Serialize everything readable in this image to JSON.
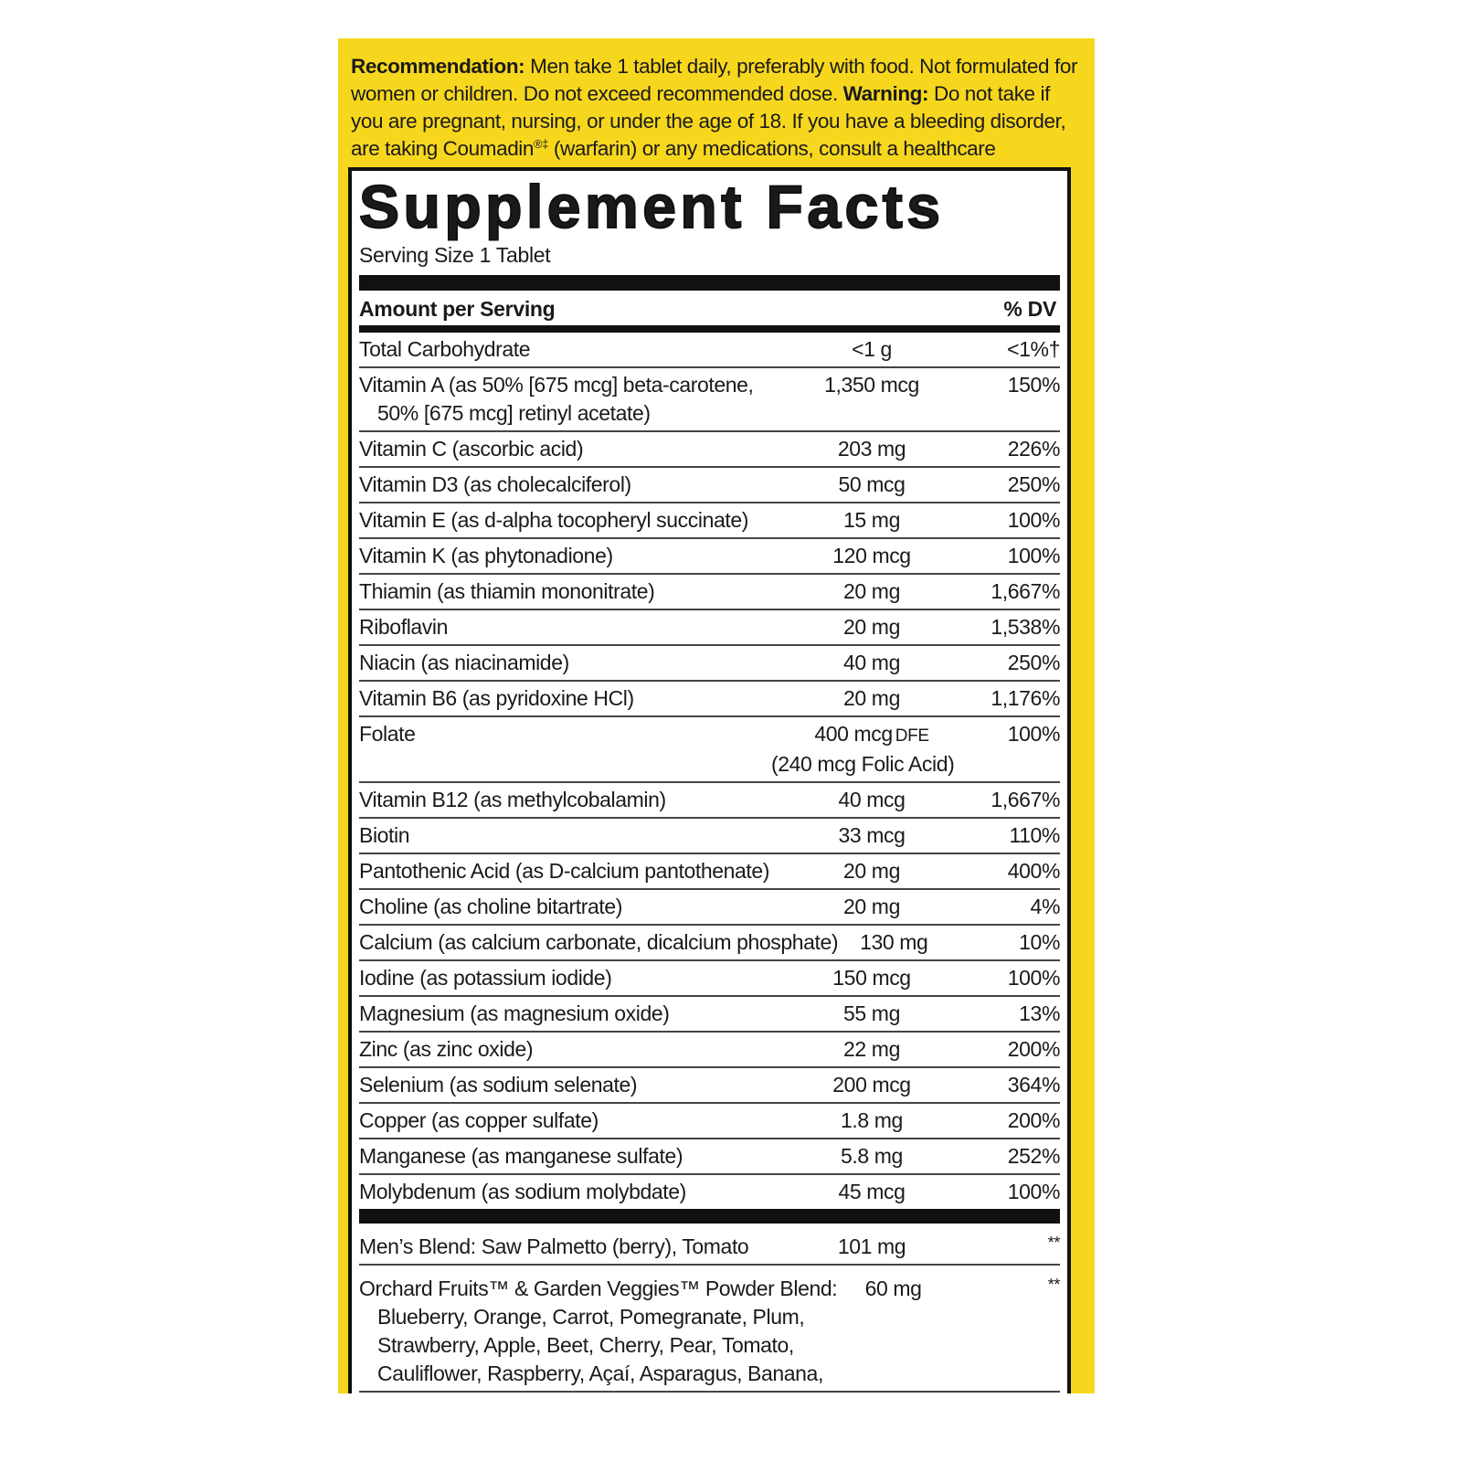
{
  "warning_box": {
    "recommendation_label": "Recommendation:",
    "recommendation_text": "Men take 1 tablet daily, preferably with food. Not formulated for women or children. Do not exceed recommended dose.",
    "warning_label": "Warning:",
    "warning_text_1": "Do not take if you are pregnant, nursing, or under the age of 18. If you have a bleeding disorder, are taking Coumadin",
    "warning_mark": "®‡",
    "warning_text_2": "(warfarin) or any medications, consult a healthcare professional before use."
  },
  "facts": {
    "title": "Supplement Facts",
    "serving_size": "Serving Size 1 Tablet",
    "header": {
      "amount": "Amount per Serving",
      "dv": "% DV"
    },
    "rows": [
      {
        "name": "Total Carbohydrate",
        "amount": "<1 g",
        "dv": "<1%†"
      },
      {
        "name": "Vitamin A (as 50% [675 mcg] beta-carotene,",
        "detail": "50% [675 mcg] retinyl acetate)",
        "amount": "1,350 mcg",
        "dv": "150%"
      },
      {
        "name": "Vitamin C (ascorbic acid)",
        "amount": "203 mg",
        "dv": "226%"
      },
      {
        "name": "Vitamin D3 (as cholecalciferol)",
        "amount": "50 mcg",
        "dv": "250%"
      },
      {
        "name": "Vitamin E (as d-alpha tocopheryl succinate)",
        "amount": "15 mg",
        "dv": "100%"
      },
      {
        "name": "Vitamin K (as phytonadione)",
        "amount": "120 mcg",
        "dv": "100%"
      },
      {
        "name": "Thiamin (as thiamin mononitrate)",
        "amount": "20 mg",
        "dv": "1,667%"
      },
      {
        "name": "Riboflavin",
        "amount": "20 mg",
        "dv": "1,538%"
      },
      {
        "name": "Niacin (as niacinamide)",
        "amount": "40 mg",
        "dv": "250%"
      },
      {
        "name": "Vitamin B6 (as pyridoxine HCl)",
        "amount": "20 mg",
        "dv": "1,176%"
      },
      {
        "name": "Folate",
        "amount": "400 mcg",
        "unit": "DFE",
        "amount_detail": "(240 mcg Folic Acid)",
        "dv": "100%"
      },
      {
        "name": "Vitamin B12 (as methylcobalamin)",
        "amount": "40 mcg",
        "dv": "1,667%"
      },
      {
        "name": "Biotin",
        "amount": "33 mcg",
        "dv": "110%"
      },
      {
        "name": "Pantothenic Acid (as D-calcium pantothenate)",
        "amount": "20 mg",
        "dv": "400%"
      },
      {
        "name": "Choline (as choline bitartrate)",
        "amount": "20 mg",
        "dv": "4%"
      },
      {
        "name": "Calcium (as calcium carbonate, dicalcium phosphate)",
        "amount": "130 mg",
        "dv": "10%"
      },
      {
        "name": "Iodine (as potassium iodide)",
        "amount": "150 mcg",
        "dv": "100%"
      },
      {
        "name": "Magnesium (as magnesium oxide)",
        "amount": "55 mg",
        "dv": "13%"
      },
      {
        "name": "Zinc (as zinc oxide)",
        "amount": "22 mg",
        "dv": "200%"
      },
      {
        "name": "Selenium (as sodium selenate)",
        "amount": "200 mcg",
        "dv": "364%"
      },
      {
        "name": "Copper (as copper sulfate)",
        "amount": "1.8 mg",
        "dv": "200%"
      },
      {
        "name": "Manganese (as manganese sulfate)",
        "amount": "5.8 mg",
        "dv": "252%"
      },
      {
        "name": "Molybdenum (as sodium molybdate)",
        "amount": "45 mcg",
        "dv": "100%"
      }
    ],
    "blends": [
      {
        "name": "Men’s Blend: Saw Palmetto (berry), Tomato",
        "amount": "101 mg",
        "dv": "**"
      },
      {
        "name": "Orchard Fruits™ & Garden Veggies™ Powder Blend:",
        "ingredients": [
          "Blueberry, Orange, Carrot, Pomegranate, Plum,",
          "Strawberry, Apple, Beet, Cherry, Pear, Tomato,",
          "Cauliflower, Raspberry, Açaí, Asparagus, Banana,"
        ],
        "amount": "60 mg",
        "dv": "**"
      }
    ]
  }
}
